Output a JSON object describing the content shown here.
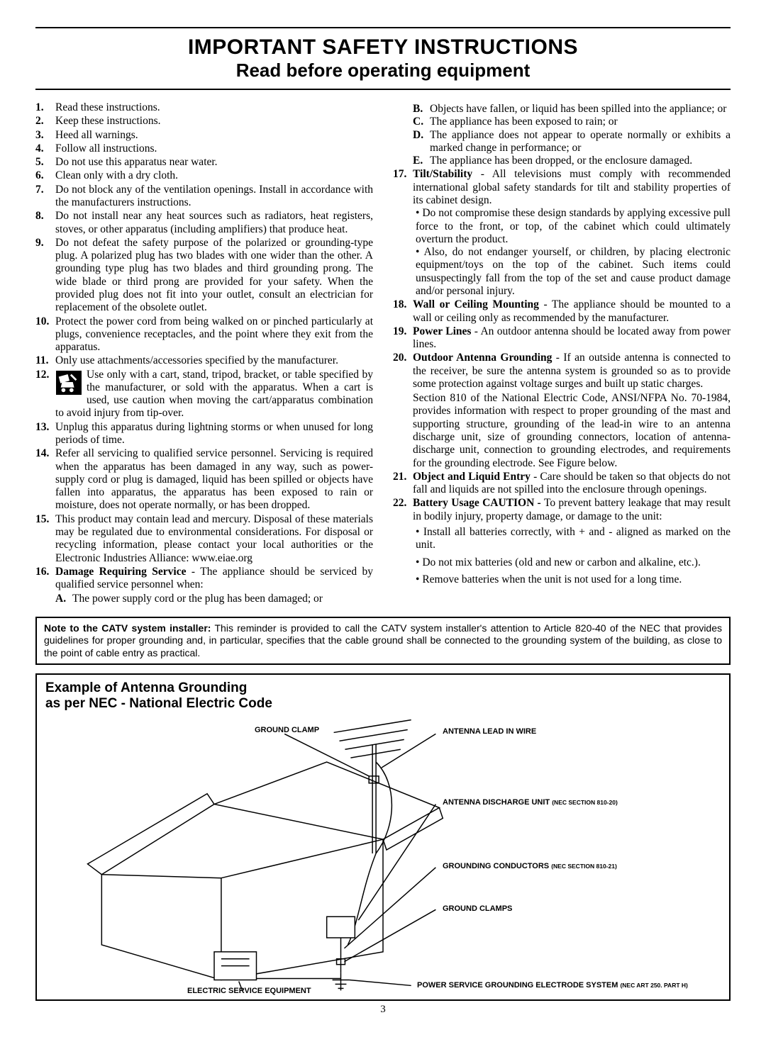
{
  "title1": "IMPORTANT SAFETY INSTRUCTIONS",
  "title2": "Read before operating equipment",
  "left_items": [
    {
      "n": "1.",
      "t": "Read these instructions."
    },
    {
      "n": "2.",
      "t": "Keep these instructions."
    },
    {
      "n": "3.",
      "t": "Heed all warnings."
    },
    {
      "n": "4.",
      "t": "Follow all instructions."
    },
    {
      "n": "5.",
      "t": "Do not use this apparatus near water."
    },
    {
      "n": "6.",
      "t": "Clean only with a dry cloth."
    },
    {
      "n": "7.",
      "t": "Do not block any of the ventilation openings. Install in accordance with the manufacturers instructions."
    },
    {
      "n": "8.",
      "t": "Do not install near any heat sources such as radiators, heat registers, stoves, or other apparatus (including amplifiers) that produce heat."
    },
    {
      "n": "9.",
      "t": "Do not defeat the safety purpose of the polarized or grounding-type plug. A polarized plug has two blades with one wider than the other. A grounding type plug has two blades and third grounding prong. The wide blade or third prong are provided for your safety. When the provided plug does not fit into your outlet, consult an electrician for replacement of the obsolete outlet."
    },
    {
      "n": "10.",
      "t": "Protect the power cord from being walked on or pinched particularly at plugs, convenience receptacles, and the point where they exit from the apparatus."
    },
    {
      "n": "11.",
      "t": "Only use attachments/accessories specified by the manufacturer."
    },
    {
      "n": "12.",
      "t": "Use only with a cart, stand, tripod, bracket, or table specified by the manufacturer, or sold with the apparatus. When a cart is used, use caution when moving the cart/apparatus combination to avoid injury from tip-over.",
      "icon": true
    },
    {
      "n": "13.",
      "t": "Unplug this apparatus during lightning storms or when unused for long periods of time."
    },
    {
      "n": "14.",
      "t": "Refer all servicing to qualified service personnel. Servicing is required when the apparatus has been damaged in any way, such as power-supply cord or plug is damaged, liquid has been spilled or objects have fallen into apparatus, the apparatus has been exposed to rain or moisture, does not operate normally, or has been dropped."
    },
    {
      "n": "15.",
      "t": "This product may contain lead and mercury. Disposal of these materials may be regulated due to environmental considerations. For disposal or recycling information, please contact your local authorities or the Electronic Industries Alliance: www.eiae.org"
    },
    {
      "n": "16.",
      "lead": "Damage Requiring Service",
      "t": " - The appliance should be serviced by qualified service personnel when:",
      "sub": [
        {
          "a": "A.",
          "t": "The power supply cord or the plug has been damaged; or"
        }
      ]
    }
  ],
  "right_pre_subs": [
    {
      "a": "B.",
      "t": "Objects have fallen, or liquid has been spilled into the appliance; or"
    },
    {
      "a": "C.",
      "t": "The appliance has been exposed to rain; or"
    },
    {
      "a": "D.",
      "t": "The appliance does not appear to operate normally or exhibits a marked change in performance; or"
    },
    {
      "a": "E.",
      "t": "The appliance has been dropped, or the enclosure damaged."
    }
  ],
  "right_items": [
    {
      "n": "17.",
      "lead": "Tilt/Stability",
      "t": " - All televisions must comply with recommended international global safety standards for tilt and stability properties of its cabinet design.",
      "bul": [
        "Do not compromise these design standards by applying excessive pull force to the front, or top, of the cabinet which could ultimately overturn the product.",
        "Also, do not endanger yourself, or children, by placing electronic equipment/toys on the top of the cabinet. Such items could unsuspectingly fall from the top of the set and cause product damage and/or personal injury."
      ]
    },
    {
      "n": "18.",
      "lead": "Wall or Ceiling Mounting",
      "t": " - The appliance should be mounted to a wall or ceiling only as recommended by the manufacturer."
    },
    {
      "n": "19.",
      "lead": "Power Lines",
      "t": " - An outdoor antenna should be located away from power lines."
    },
    {
      "n": "20.",
      "lead": "Outdoor Antenna Grounding",
      "t": " - If an outside antenna is connected to the receiver, be sure the antenna system is grounded so as to provide some protection against voltage surges and built up static charges.",
      "extra": "Section 810 of the National Electric Code, ANSI/NFPA No. 70-1984, provides information with respect to proper grounding of the mast and supporting structure, grounding of the lead-in wire to an antenna discharge unit, size of grounding connectors, location of antenna-discharge unit, connection to grounding electrodes, and requirements for the grounding electrode. See Figure below."
    },
    {
      "n": "21.",
      "lead": "Object and Liquid Entry",
      "t": " - Care should be taken so that objects do not fall and liquids are not spilled into the enclosure through openings."
    },
    {
      "n": "22.",
      "lead": "Battery Usage CAUTION - ",
      "t": "To prevent battery leakage that may result in bodily injury, property damage, or damage to the unit:",
      "bul2": [
        "Install all batteries correctly, with + and - aligned as marked on the unit.",
        "Do not mix batteries (old and new or carbon and alkaline, etc.).",
        "Remove batteries when the unit is not used for a long time."
      ]
    }
  ],
  "note_lead": "Note to the CATV system installer:",
  "note_body": " This reminder is provided to call the CATV system installer's attention to Article 820-40 of the NEC that provides guidelines for proper grounding and, in particular, specifies that the cable ground shall be connected to the grounding system of the building, as close to the point of cable entry as practical.",
  "fig_title1": "Example of Antenna Grounding",
  "fig_title2": "as per NEC - National Electric Code",
  "fig_labels": {
    "ground_clamp": "GROUND CLAMP",
    "antenna_lead": "ANTENNA LEAD IN WIRE",
    "discharge": "ANTENNA DISCHARGE UNIT",
    "discharge_sec": "(NEC SECTION 810-20)",
    "conductors": "GROUNDING CONDUCTORS",
    "conductors_sec": "(NEC SECTION 810-21)",
    "ground_clamps": "GROUND CLAMPS",
    "electric": "ELECTRIC SERVICE EQUIPMENT",
    "power": "POWER SERVICE GROUNDING ELECTRODE SYSTEM",
    "power_sec": "(NEC ART 250. PART H)"
  },
  "pagenum": "3"
}
